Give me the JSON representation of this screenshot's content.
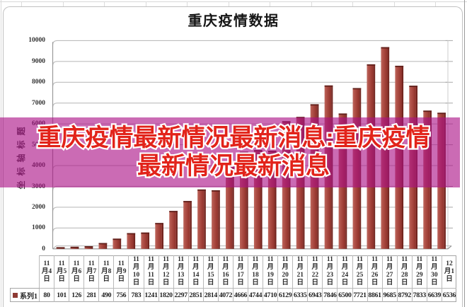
{
  "chart_data": {
    "type": "bar",
    "title": "重庆疫情数据",
    "ylabel": "坐标轴标题",
    "xlabel": "",
    "categories": [
      "11月4日",
      "11月5日",
      "11月6日",
      "11月7日",
      "11月8日",
      "11月9日",
      "11月10日",
      "11月11日",
      "11月12日",
      "11月13日",
      "11月14日",
      "11月15日",
      "11月16日",
      "11月17日",
      "11月18日",
      "11月19日",
      "11月20日",
      "11月21日",
      "11月22日",
      "11月23日",
      "11月24日",
      "11月25日",
      "11月26日",
      "11月27日",
      "11月28日",
      "11月29日",
      "11月30日",
      "12月1日"
    ],
    "series": [
      {
        "name": "系列1",
        "values": [
          80,
          101,
          126,
          281,
          490,
          756,
          783,
          1241,
          1820,
          2297,
          2851,
          2814,
          4072,
          4666,
          4744,
          4710,
          6129,
          6335,
          6943,
          7846,
          6500,
          7721,
          8861,
          9685,
          8792,
          7833,
          6639,
          6536
        ]
      }
    ],
    "ylim": [
      0,
      10000
    ],
    "ytick_step": 1000,
    "ytick_labels": [
      "0",
      "1000",
      "2000",
      "3000",
      "4000",
      "5000",
      "6000",
      "7000",
      "8000",
      "9000",
      "10000"
    ],
    "grid": true,
    "legend_position": "bottom-left-data-table",
    "has_data_table": true,
    "bar_color": "#b04a42",
    "bar_side_color": "#73251f",
    "bar_top_color": "#61201b",
    "legend_marker_color": "#8e3a34"
  },
  "overlay": {
    "line1": "重庆疫情最新情况最新消息:重庆疫情",
    "line2": "最新情况最新消息",
    "band_color": "#ab1086",
    "band_opacity": 0.62,
    "text_color": "#e2231a",
    "outline_color": "#ffffff"
  }
}
